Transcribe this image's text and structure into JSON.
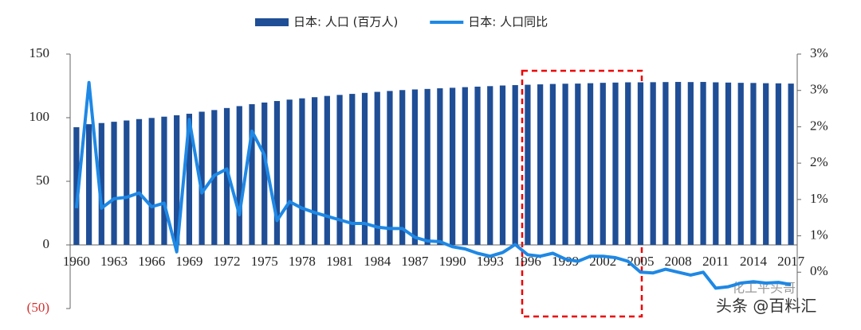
{
  "chart_data": {
    "type": "bar-line",
    "categories": [
      "1960",
      null,
      null,
      "1963",
      null,
      null,
      "1966",
      null,
      null,
      "1969",
      null,
      null,
      "1972",
      null,
      null,
      "1975",
      null,
      null,
      "1978",
      null,
      null,
      "1981",
      null,
      null,
      "1984",
      null,
      null,
      "1987",
      null,
      null,
      "1990",
      null,
      null,
      "1993",
      null,
      null,
      "1996",
      null,
      null,
      "1999",
      null,
      null,
      "2002",
      null,
      null,
      "2005",
      null,
      null,
      "2008",
      null,
      null,
      "2011",
      null,
      null,
      "2014",
      null,
      null,
      "2017"
    ],
    "series": [
      {
        "name": "日本: 人口 (百万人)",
        "type": "bar",
        "color": "#1f4e96",
        "values": [
          92.5,
          94.9,
          95.8,
          96.8,
          97.8,
          98.9,
          99.8,
          100.8,
          101.9,
          103.1,
          104.7,
          106.0,
          107.6,
          109.1,
          110.6,
          111.9,
          113.1,
          114.2,
          115.2,
          116.1,
          117.1,
          117.9,
          118.7,
          119.5,
          120.3,
          121.0,
          121.7,
          122.2,
          122.6,
          123.1,
          123.5,
          124.0,
          124.4,
          124.8,
          125.3,
          125.6,
          125.9,
          126.2,
          126.5,
          126.7,
          126.8,
          127.1,
          127.4,
          127.6,
          127.8,
          127.8,
          127.9,
          128.0,
          128.1,
          128.0,
          128.1,
          127.8,
          127.6,
          127.4,
          127.3,
          127.1,
          127.0,
          126.8
        ]
      },
      {
        "name": "日本: 人口同比",
        "type": "line",
        "axis": "y2",
        "color": "#1e88e5",
        "values": [
          0.88,
          2.61,
          0.88,
          1.01,
          1.03,
          1.09,
          0.9,
          0.95,
          0.28,
          2.1,
          1.09,
          1.33,
          1.42,
          0.79,
          1.94,
          1.61,
          0.71,
          0.97,
          0.88,
          0.82,
          0.77,
          0.72,
          0.67,
          0.67,
          0.62,
          0.6,
          0.6,
          0.48,
          0.43,
          0.42,
          0.35,
          0.32,
          0.26,
          0.22,
          0.27,
          0.38,
          0.24,
          0.22,
          0.26,
          0.18,
          0.15,
          0.22,
          0.22,
          0.2,
          0.15,
          0.0,
          -0.01,
          0.04,
          0.0,
          -0.04,
          0.0,
          -0.22,
          -0.2,
          -0.15,
          -0.13,
          -0.15,
          -0.14,
          -0.17
        ]
      }
    ],
    "ylim": [
      -50,
      150
    ],
    "yticks": [
      {
        "value": -50,
        "label": "(50)"
      },
      0,
      50,
      100,
      150
    ],
    "y2lim": [
      -0.5,
      3.0
    ],
    "y2ticks": [
      {
        "value": 0,
        "label": "0%"
      },
      {
        "value": 0.5,
        "label": "1%"
      },
      {
        "value": 1.0,
        "label": "1%"
      },
      {
        "value": 1.5,
        "label": "2%"
      },
      {
        "value": 2.0,
        "label": "2%"
      },
      {
        "value": 2.5,
        "label": "3%"
      },
      {
        "value": 3.0,
        "label": "3%"
      }
    ],
    "legend": "top"
  },
  "watermark": {
    "source": "化工平头哥",
    "platform": "头条 @百料汇"
  }
}
